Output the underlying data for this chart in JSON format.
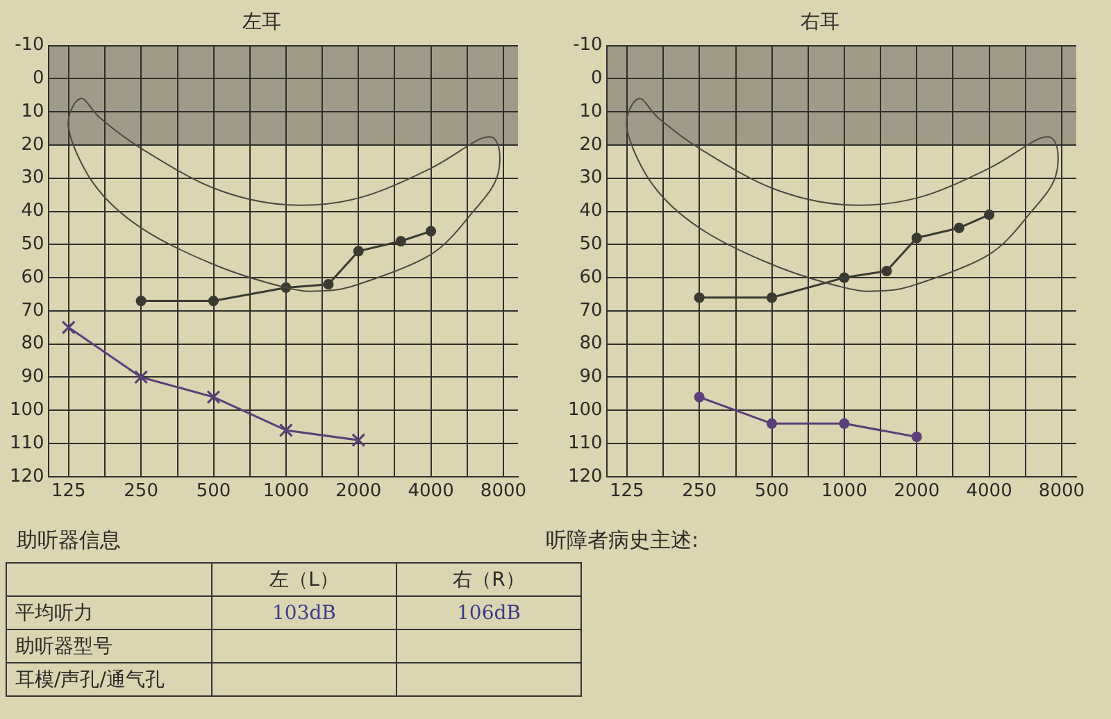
{
  "chart_data": [
    {
      "type": "line",
      "title": "左耳",
      "x": [
        125,
        250,
        500,
        1000,
        2000
      ],
      "xlim": [
        103,
        9200
      ],
      "ylim": [
        120,
        -10
      ],
      "xticks": [
        125,
        {
          "value": 177,
          "label": null
        },
        250,
        {
          "value": 354,
          "label": null
        },
        500,
        {
          "value": 707,
          "label": null
        },
        1000,
        {
          "value": 1414,
          "label": null
        },
        2000,
        {
          "value": 2828,
          "label": null
        },
        4000,
        {
          "value": 5657,
          "label": null
        },
        8000
      ],
      "yticks": [
        -10,
        0,
        10,
        20,
        30,
        40,
        50,
        60,
        70,
        80,
        90,
        100,
        110,
        120
      ],
      "log": "x",
      "grid": true,
      "legend": false,
      "line_style": "solid",
      "bands": [
        {
          "axis": "y",
          "from": -10,
          "to": 20,
          "color": "#8c877a"
        }
      ],
      "series": [
        {
          "color": "#5a3f78",
          "marker": "cross",
          "values": [
            75,
            90,
            96,
            106,
            109
          ]
        },
        {
          "color": "#3a3a30",
          "marker": "circle",
          "x": [
            250,
            500,
            1000,
            1500,
            2000,
            3000,
            4000
          ],
          "values": [
            67,
            67,
            63,
            62,
            52,
            49,
            46
          ]
        }
      ]
    },
    {
      "type": "line",
      "title": "右耳",
      "x": [
        250,
        500,
        1000,
        2000
      ],
      "xlim": [
        103,
        9200
      ],
      "ylim": [
        120,
        -10
      ],
      "xticks": [
        125,
        {
          "value": 177,
          "label": null
        },
        250,
        {
          "value": 354,
          "label": null
        },
        500,
        {
          "value": 707,
          "label": null
        },
        1000,
        {
          "value": 1414,
          "label": null
        },
        2000,
        {
          "value": 2828,
          "label": null
        },
        4000,
        {
          "value": 5657,
          "label": null
        },
        8000
      ],
      "yticks": [
        -10,
        0,
        10,
        20,
        30,
        40,
        50,
        60,
        70,
        80,
        90,
        100,
        110,
        120
      ],
      "log": "x",
      "grid": true,
      "legend": false,
      "line_style": "solid",
      "bands": [
        {
          "axis": "y",
          "from": -10,
          "to": 20,
          "color": "#8c877a"
        }
      ],
      "series": [
        {
          "color": "#5a3f78",
          "marker": "circle",
          "values": [
            96,
            104,
            104,
            108
          ]
        },
        {
          "color": "#3a3a30",
          "marker": "circle",
          "x": [
            250,
            500,
            1000,
            1500,
            2000,
            3000,
            4000
          ],
          "values": [
            66,
            66,
            60,
            58,
            48,
            45,
            41
          ]
        }
      ]
    },
    {
      "type": "other",
      "title": "助听器信息",
      "annotations": [
        "左（L）",
        "右（R）",
        "平均听力",
        "103dB",
        "106dB",
        "助听器型号",
        "耳模/声孔/通气孔"
      ]
    },
    {
      "type": "other",
      "title": "听障者病史主述:"
    }
  ]
}
